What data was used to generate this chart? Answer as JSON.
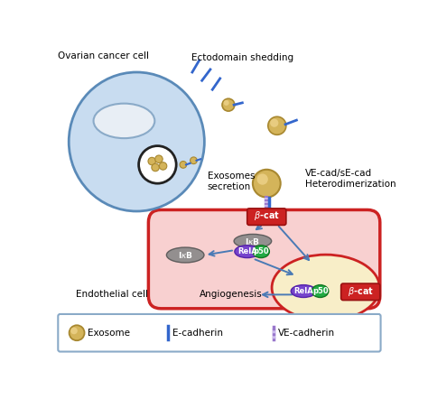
{
  "bg_color": "#ffffff",
  "cell_color": "#c8dcf0",
  "cell_border": "#5a8ab8",
  "nucleus_color": "#dde8f0",
  "nucleus_border": "#8aaac8",
  "endothelial_bg": "#f8d0d0",
  "endothelial_border": "#cc2222",
  "nucleus2_bg": "#f8eec8",
  "nucleus2_border": "#cc2222",
  "exosome_fill": "#d4b45a",
  "exosome_inner": "#e8cc80",
  "exosome_ring": "#a88830",
  "beta_cat_color": "#cc2222",
  "IkB_color": "#888888",
  "IkB_border": "#555555",
  "RelA_color": "#7744cc",
  "RelA_border": "#5522aa",
  "p50_color": "#22aa44",
  "p50_border": "#117722",
  "legend_border": "#8aaac8",
  "arrow_color": "#4a7ab5",
  "ecad_color": "#3366cc",
  "vecad_color1": "#9977cc",
  "vecad_color2": "#ccbbee",
  "title_ovarian": "Ovarian cancer cell",
  "title_ecto": "Ectodomain shedding",
  "title_exo_sec": "Exosomes\nsecretion",
  "title_hetero": "VE-cad/sE-cad\nHeterodimerization",
  "title_endo": "Endothelial cell",
  "title_angio": "Angiogenesis",
  "legend_exosome": "Exosome",
  "legend_ecad": "E-cadherin",
  "legend_vecad": "VE-cadherin"
}
